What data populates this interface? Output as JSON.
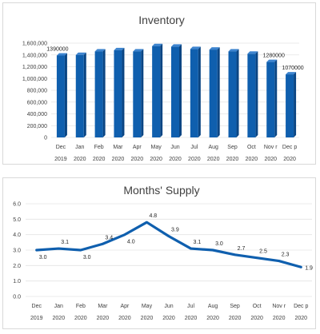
{
  "chart_data": [
    {
      "type": "bar",
      "title": "Inventory",
      "categories": [
        "Dec 2019",
        "Jan 2020",
        "Feb 2020",
        "Mar 2020",
        "Apr 2020",
        "May 2020",
        "Jun 2020",
        "Jul 2020",
        "Aug 2020",
        "Sep 2020",
        "Oct 2020",
        "Nov r 2020",
        "Dec p 2020"
      ],
      "cat_line1": [
        "Dec",
        "Jan",
        "Feb",
        "Mar",
        "Apr",
        "May",
        "Jun",
        "Jul",
        "Aug",
        "Sep",
        "Oct",
        "Nov r",
        "Dec p"
      ],
      "cat_line2": [
        "2019",
        "2020",
        "2020",
        "2020",
        "2020",
        "2020",
        "2020",
        "2020",
        "2020",
        "2020",
        "2020",
        "2020",
        "2020"
      ],
      "values": [
        1390000,
        1400000,
        1460000,
        1480000,
        1460000,
        1550000,
        1540000,
        1500000,
        1490000,
        1460000,
        1420000,
        1280000,
        1070000
      ],
      "data_labels": [
        "1390000",
        "",
        "",
        "",
        "",
        "",
        "",
        "",
        "",
        "",
        "",
        "1280000",
        "1070000"
      ],
      "ylim": [
        0,
        1600000
      ],
      "yticks": [
        "0",
        "200,000",
        "400,000",
        "600,000",
        "800,000",
        "1,000,000",
        "1,200,000",
        "1,400,000",
        "1,600,000"
      ],
      "bar_color": "#0F5FAE",
      "grid": true,
      "xlabel": "",
      "ylabel": ""
    },
    {
      "type": "line",
      "title": "Months' Supply",
      "categories": [
        "Dec 2019",
        "Jan 2020",
        "Feb 2020",
        "Mar 2020",
        "Apr 2020",
        "May 2020",
        "Jun 2020",
        "Jul 2020",
        "Aug 2020",
        "Sep 2020",
        "Oct 2020",
        "Nov r 2020",
        "Dec p 2020"
      ],
      "cat_line1": [
        "Dec",
        "Jan",
        "Feb",
        "Mar",
        "Apr",
        "May",
        "Jun",
        "Jul",
        "Aug",
        "Sep",
        "Oct",
        "Nov r",
        "Dec p"
      ],
      "cat_line2": [
        "2019",
        "2020",
        "2020",
        "2020",
        "2020",
        "2020",
        "2020",
        "2020",
        "2020",
        "2020",
        "2020",
        "2020",
        "2020"
      ],
      "values": [
        3.0,
        3.1,
        3.0,
        3.4,
        4.0,
        4.8,
        3.9,
        3.1,
        3.0,
        2.7,
        2.5,
        2.3,
        1.9
      ],
      "data_labels": [
        "3.0",
        "3.1",
        "3.0",
        "3.4",
        "4.0",
        "4.8",
        "3.9",
        "3.1",
        "3.0",
        "2.7",
        "2.5",
        "2.3",
        "1.9"
      ],
      "label_side": [
        "below",
        "above",
        "below",
        "above",
        "below",
        "above",
        "above",
        "above",
        "above",
        "above",
        "above",
        "above",
        "right"
      ],
      "ylim": [
        0,
        6
      ],
      "yticks": [
        "0.0",
        "1.0",
        "2.0",
        "3.0",
        "4.0",
        "5.0",
        "6.0"
      ],
      "line_color": "#0F5FAE",
      "grid": true,
      "xlabel": "",
      "ylabel": ""
    }
  ]
}
